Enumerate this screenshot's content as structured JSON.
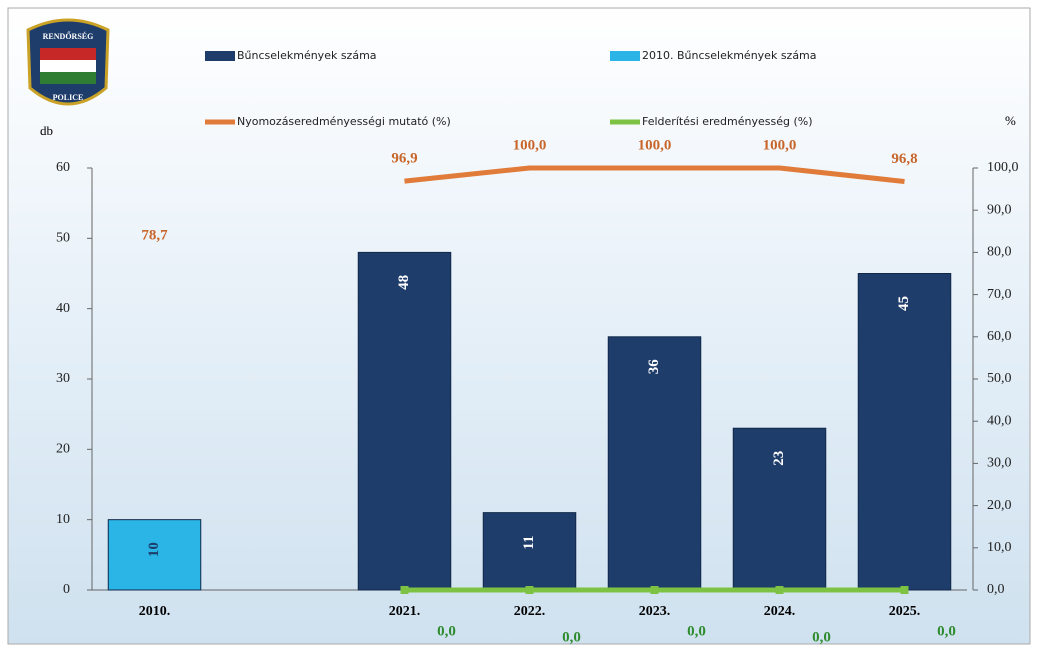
{
  "logo": {
    "top": "RENDŐRSÉG",
    "bottom": "POLICE"
  },
  "chart_data": {
    "type": "bar",
    "y_label": "db",
    "y2_label": "%",
    "categories": [
      "2010.",
      null,
      "2021.",
      "2022.",
      "2023.",
      "2024.",
      "2025."
    ],
    "ylim": [
      0,
      60
    ],
    "yticks": [
      0,
      10,
      20,
      30,
      40,
      50,
      60
    ],
    "y2lim": [
      0,
      100
    ],
    "y2ticks": [
      {
        "value": 0,
        "label": "0,0"
      },
      {
        "value": 10,
        "label": "10,0"
      },
      {
        "value": 20,
        "label": "20,0"
      },
      {
        "value": 30,
        "label": "30,0"
      },
      {
        "value": 40,
        "label": "40,0"
      },
      {
        "value": 50,
        "label": "50,0"
      },
      {
        "value": 60,
        "label": "60,0"
      },
      {
        "value": 70,
        "label": "70,0"
      },
      {
        "value": 80,
        "label": "80,0"
      },
      {
        "value": 90,
        "label": "90,0"
      },
      {
        "value": 100,
        "label": "100,0"
      }
    ],
    "series": [
      {
        "name": "Bűncselekmények száma",
        "type": "bar",
        "color": "#1f3d6b",
        "values": [
          null,
          null,
          48,
          11,
          36,
          23,
          45
        ]
      },
      {
        "name": "2010. Bűncselekmények száma",
        "type": "bar",
        "color": "#2bb5e6",
        "values": [
          10,
          null,
          null,
          null,
          null,
          null,
          null
        ]
      },
      {
        "name": "Nyomozáseredményességi mutató (%)",
        "type": "line",
        "axis": "y2",
        "color": "#e07b39",
        "values": [
          78.7,
          null,
          96.9,
          100.0,
          100.0,
          100.0,
          96.8
        ],
        "value_labels": [
          "78,7",
          null,
          "96,9",
          "100,0",
          "100,0",
          "100,0",
          "96,8"
        ]
      },
      {
        "name": "Felderítési eredményesség (%)",
        "type": "line",
        "axis": "y2",
        "color": "#7dc242",
        "values": [
          null,
          null,
          0.0,
          0.0,
          0.0,
          0.0,
          0.0
        ],
        "value_labels": [
          null,
          null,
          "0,0",
          "0,0",
          "0,0",
          "0,0",
          "0,0"
        ]
      }
    ]
  }
}
